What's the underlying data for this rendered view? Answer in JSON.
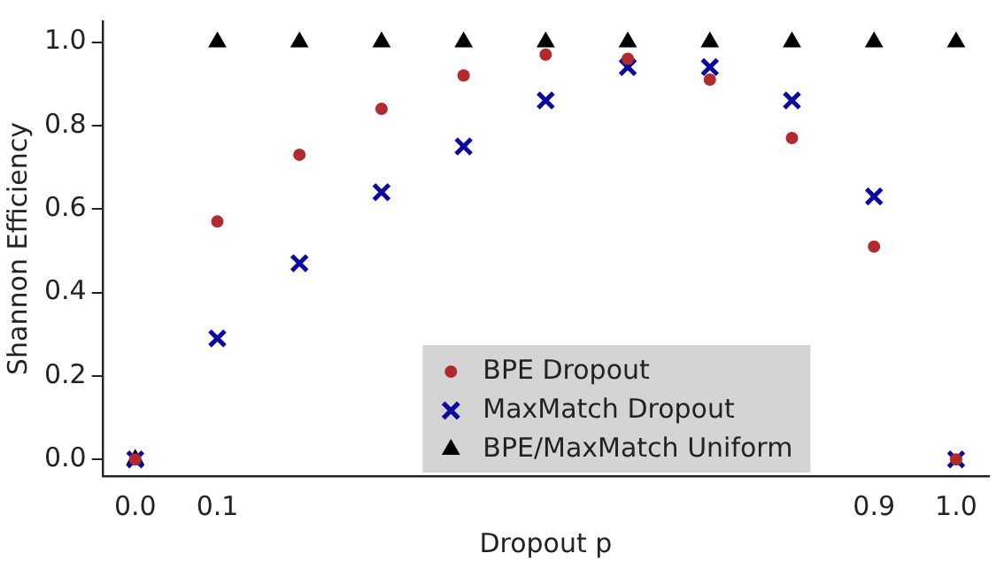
{
  "chart_data": {
    "type": "scatter",
    "xlabel": "Dropout p",
    "ylabel": "Shannon Efficiency",
    "x": [
      0,
      0.1,
      0.2,
      0.3,
      0.4,
      0.5,
      0.6,
      0.7,
      0.8,
      0.9,
      1.0
    ],
    "series": [
      {
        "name": "BPE Dropout",
        "color": "#b22a2e",
        "marker": "circle",
        "values": [
          0,
          0.57,
          0.73,
          0.84,
          0.92,
          0.97,
          0.96,
          0.91,
          0.77,
          0.51,
          0
        ]
      },
      {
        "name": "MaxMatch Dropout",
        "color": "#0a0aa0",
        "marker": "cross",
        "values": [
          0,
          0.29,
          0.47,
          0.64,
          0.75,
          0.86,
          0.94,
          0.94,
          0.86,
          0.63,
          0
        ]
      },
      {
        "name": "BPE/MaxMatch Uniform",
        "color": "#000000",
        "marker": "triangle",
        "values": [
          0,
          1,
          1,
          1,
          1,
          1,
          1,
          1,
          1,
          1,
          1
        ]
      }
    ],
    "xlim": [
      -0.04,
      1.04
    ],
    "ylim": [
      -0.04,
      1.05
    ],
    "xticks": [
      {
        "value": 0,
        "label": "0.0"
      },
      0.1,
      0.9,
      {
        "value": 1,
        "label": "1.0"
      }
    ],
    "yticks": [
      {
        "value": 0,
        "label": "0.0"
      },
      0.2,
      0.4,
      0.6,
      0.8,
      {
        "value": 1,
        "label": "1.0"
      }
    ],
    "grid": false,
    "legend": "bottom"
  }
}
